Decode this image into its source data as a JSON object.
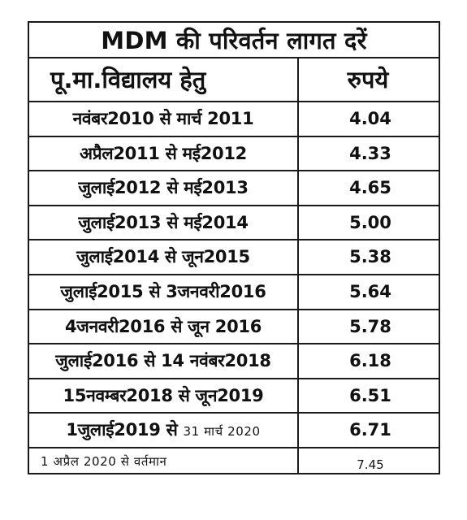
{
  "table": {
    "title": "MDM की परिवर्तन लागत दरें",
    "header": {
      "period": "पू.मा.विद्यालय हेतु",
      "rate": "रुपये"
    },
    "rows": [
      {
        "period": "नवंबर2010 से मार्च 2011",
        "rate": "4.04"
      },
      {
        "period": "अप्रैल2011 से मई2012",
        "rate": "4.33"
      },
      {
        "period": "जुलाई2012 से मई2013",
        "rate": "4.65"
      },
      {
        "period": "जुलाई2013 से मई2014",
        "rate": "5.00"
      },
      {
        "period": "जुलाई2014 से जून2015",
        "rate": "5.38"
      },
      {
        "period": "जुलाई2015 से 3जनवरी2016",
        "rate": "5.64"
      },
      {
        "period": "4जनवरी2016 से जून 2016",
        "rate": "5.78"
      },
      {
        "period": "जुलाई2016 से 14 नवंबर2018",
        "rate": "6.18"
      },
      {
        "period": "15नवम्बर2018 से जून2019",
        "rate": "6.51"
      },
      {
        "period_start": "1जुलाई2019 से",
        "period_end": "31 मार्च 2020",
        "rate": "6.71"
      }
    ],
    "last_row": {
      "period": "1 अप्रैल 2020 से वर्तमान",
      "rate": "7.45"
    }
  }
}
